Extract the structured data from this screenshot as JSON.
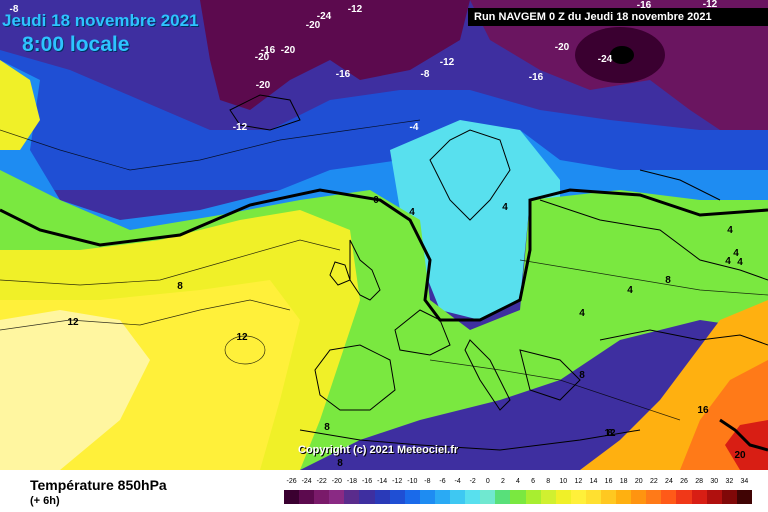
{
  "header": {
    "date_title": "Jeudi 18 novembre 2021",
    "time_title": "8:00 locale",
    "run_info": "Run NAVGEM 0 Z du Jeudi 18 novembre 2021"
  },
  "copyright": "Copyright (c) 2021 Meteociel.fr",
  "parameter": {
    "title": "Température 850hPa",
    "subtitle": "(+ 6h)"
  },
  "legend": {
    "labels": [
      "-26",
      "-24",
      "-22",
      "-20",
      "-18",
      "-16",
      "-14",
      "-12",
      "-10",
      "-8",
      "-6",
      "-4",
      "-2",
      "0",
      "2",
      "4",
      "6",
      "8",
      "10",
      "12",
      "14",
      "16",
      "18",
      "20",
      "22",
      "24",
      "26",
      "28",
      "30",
      "32",
      "34"
    ],
    "colors": [
      "#3a0030",
      "#5c0a4e",
      "#7a1a6a",
      "#8a2a84",
      "#5a2c8c",
      "#3e2fa0",
      "#2a3ab8",
      "#1f4fd4",
      "#1a6aea",
      "#1e8cf2",
      "#2aaaf4",
      "#3ec8f2",
      "#58e0ee",
      "#70e8d0",
      "#58e07a",
      "#7ae840",
      "#a8ee30",
      "#d0f030",
      "#f0f028",
      "#fff03a",
      "#ffe030",
      "#ffc820",
      "#ffb010",
      "#ff9410",
      "#ff7a18",
      "#ff5a18",
      "#f03818",
      "#d81e14",
      "#b0100e",
      "#800808",
      "#400404"
    ]
  },
  "isotherm_labels": [
    "-8",
    "-20",
    "-24",
    "-12",
    "-20",
    "-16",
    "-20",
    "-16",
    "-20",
    "-8",
    "-16",
    "-12",
    "-16",
    "-12",
    "-20",
    "-24",
    "-12",
    "-4",
    "0",
    "4",
    "4",
    "8",
    "8",
    "12",
    "12",
    "4",
    "4",
    "4",
    "4",
    "4",
    "4",
    "8",
    "8",
    "8",
    "8",
    "12",
    "16",
    "20"
  ]
}
